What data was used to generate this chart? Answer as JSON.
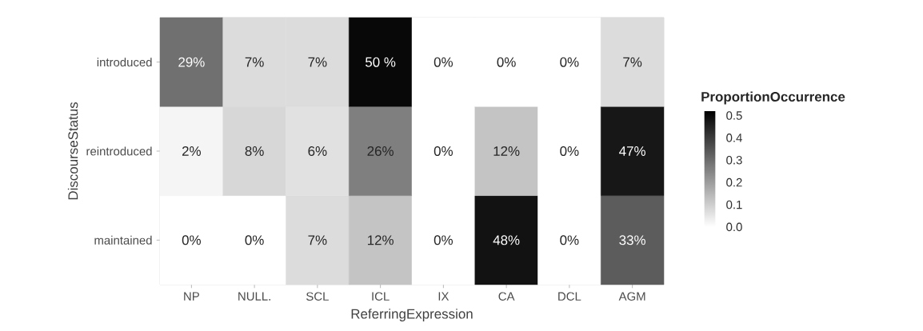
{
  "chart_data": {
    "type": "heatmap",
    "xlabel": "ReferringExpression",
    "ylabel": "DiscourseStatus",
    "legend_title": "ProportionOccurrence",
    "categories": [
      "NP",
      "NULL.",
      "SCL",
      "ICL",
      "IX",
      "CA",
      "DCL",
      "AGM"
    ],
    "y_categories": [
      "introduced",
      "reintroduced",
      "maintained"
    ],
    "cells": [
      [
        0.29,
        0.07,
        0.07,
        0.5,
        0.0,
        0.0,
        0.0,
        0.07
      ],
      [
        0.02,
        0.08,
        0.06,
        0.26,
        0.0,
        0.12,
        0.0,
        0.47
      ],
      [
        0.0,
        0.0,
        0.07,
        0.12,
        0.0,
        0.48,
        0.0,
        0.33
      ]
    ],
    "cell_labels": [
      [
        "29%",
        "7%",
        "7%",
        "50 %",
        "0%",
        "0%",
        "0%",
        "7%"
      ],
      [
        "2%",
        "8%",
        "6%",
        "26%",
        "0%",
        "12%",
        "0%",
        "47%"
      ],
      [
        "0%",
        "0%",
        "7%",
        "12%",
        "0%",
        "48%",
        "0%",
        "33%"
      ]
    ],
    "clim": [
      0,
      0.52
    ],
    "cticks": [
      {
        "value": 0,
        "label": "0.0"
      },
      {
        "value": 0.1,
        "label": "0.1"
      },
      {
        "value": 0.2,
        "label": "0.2"
      },
      {
        "value": 0.3,
        "label": "0.3"
      },
      {
        "value": 0.4,
        "label": "0.4"
      },
      {
        "value": 0.5,
        "label": "0.5"
      }
    ]
  }
}
